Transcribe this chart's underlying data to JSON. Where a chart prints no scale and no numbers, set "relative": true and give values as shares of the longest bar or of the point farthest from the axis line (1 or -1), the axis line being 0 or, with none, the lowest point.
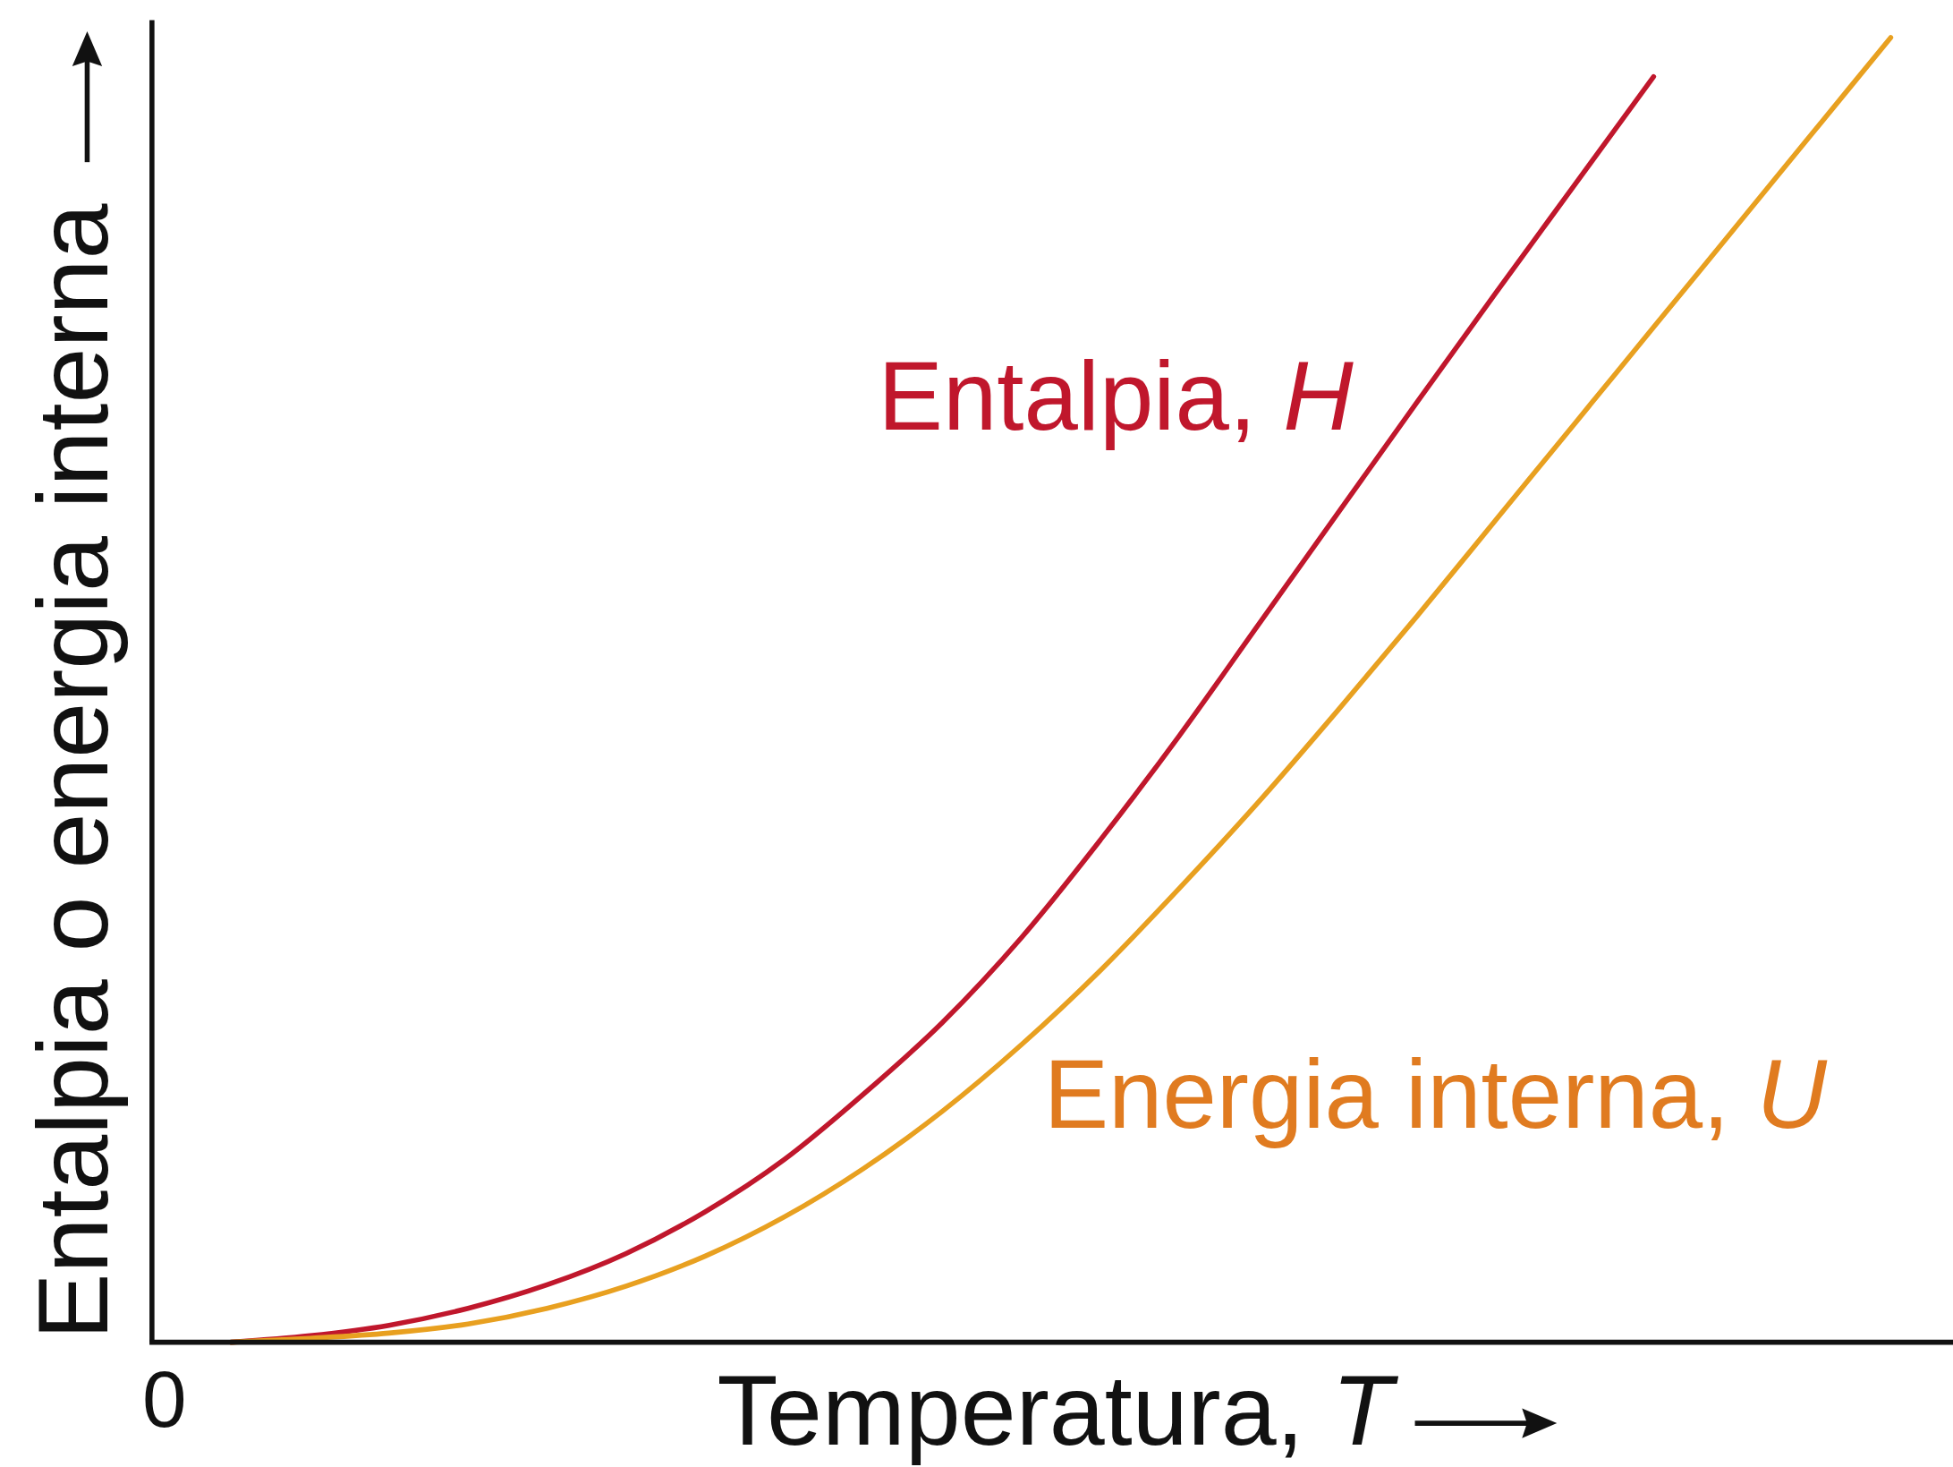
{
  "chart_data": {
    "type": "line",
    "relative": true,
    "xlabel": "Temperatura, T",
    "ylabel": "Entalpia o energia interna",
    "annotations": [
      "0"
    ],
    "categories": [
      null,
      null,
      null,
      null,
      null,
      null,
      null,
      null,
      null,
      null,
      null,
      null,
      null,
      null,
      null,
      null,
      null,
      null,
      null,
      null,
      null,
      null,
      null
    ],
    "series": [
      {
        "name": "Entalpia, H",
        "color": "#c0172c",
        "values": [
          null,
          0,
          0.005,
          0.013,
          0.026,
          0.044,
          0.068,
          0.1,
          0.14,
          0.19,
          0.245,
          0.31,
          0.385,
          0.465,
          0.55,
          0.635,
          0.72,
          0.804,
          0.887,
          0.97,
          null,
          null,
          null
        ]
      },
      {
        "name": "Energia interna, U",
        "color": "#e8a020",
        "values": [
          null,
          0,
          0.003,
          0.007,
          0.014,
          0.026,
          0.043,
          0.066,
          0.096,
          0.133,
          0.177,
          0.228,
          0.285,
          0.348,
          0.414,
          0.484,
          0.556,
          0.63,
          0.704,
          0.778,
          0.852,
          0.926,
          1.0
        ]
      }
    ],
    "marker": "none",
    "line_style": "solid"
  }
}
